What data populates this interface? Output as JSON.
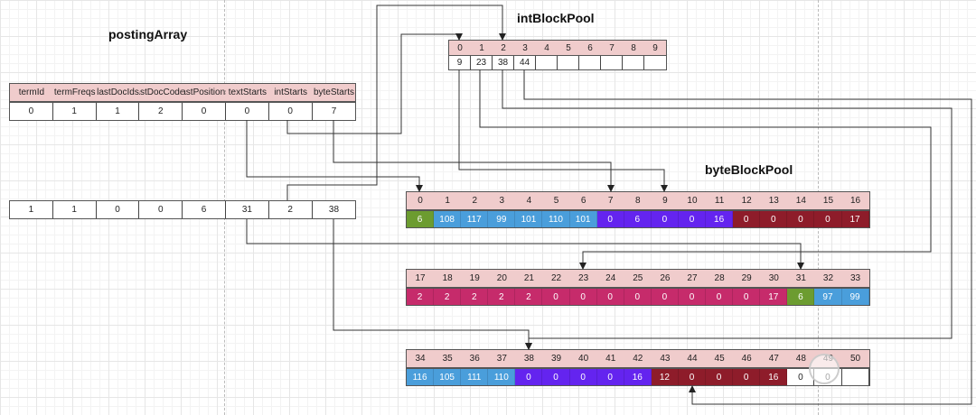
{
  "titles": {
    "posting_array": "postingArray",
    "int_block_pool": "intBlockPool",
    "byte_block_pool": "byteBlockPool"
  },
  "posting_array": {
    "headers": [
      "termId",
      "termFreqs",
      "lastDocIds",
      "lastDocCodes",
      "lastPositions",
      "textStarts",
      "intStarts",
      "byteStarts"
    ],
    "row1": [
      "0",
      "1",
      "1",
      "2",
      "0",
      "0",
      "0",
      "7"
    ],
    "row2": [
      "1",
      "1",
      "0",
      "0",
      "6",
      "31",
      "2",
      "38"
    ]
  },
  "int_block_pool": {
    "indices": [
      "0",
      "1",
      "2",
      "3",
      "4",
      "5",
      "6",
      "7",
      "8",
      "9"
    ],
    "values": [
      "9",
      "23",
      "38",
      "44",
      "",
      "",
      "",
      "",
      "",
      ""
    ]
  },
  "byte_block_pool": {
    "rows": [
      {
        "indices": [
          "0",
          "1",
          "2",
          "3",
          "4",
          "5",
          "6",
          "7",
          "8",
          "9",
          "10",
          "11",
          "12",
          "13",
          "14",
          "15",
          "16"
        ],
        "values": [
          "6",
          "108",
          "117",
          "99",
          "101",
          "110",
          "101",
          "0",
          "6",
          "0",
          "0",
          "16",
          "0",
          "0",
          "0",
          "0",
          "17"
        ],
        "colors": [
          "green",
          "blue",
          "blue",
          "blue",
          "blue",
          "blue",
          "blue",
          "purple",
          "purple",
          "purple",
          "purple",
          "purple",
          "darkred",
          "darkred",
          "darkred",
          "darkred",
          "darkred"
        ]
      },
      {
        "indices": [
          "17",
          "18",
          "19",
          "20",
          "21",
          "22",
          "23",
          "24",
          "25",
          "26",
          "27",
          "28",
          "29",
          "30",
          "31",
          "32",
          "33"
        ],
        "values": [
          "2",
          "2",
          "2",
          "2",
          "2",
          "0",
          "0",
          "0",
          "0",
          "0",
          "0",
          "0",
          "0",
          "17",
          "6",
          "97",
          "99"
        ],
        "colors": [
          "magenta",
          "magenta",
          "magenta",
          "magenta",
          "magenta",
          "magenta",
          "magenta",
          "magenta",
          "magenta",
          "magenta",
          "magenta",
          "magenta",
          "magenta",
          "magenta",
          "green",
          "blue",
          "blue"
        ]
      },
      {
        "indices": [
          "34",
          "35",
          "36",
          "37",
          "38",
          "39",
          "40",
          "41",
          "42",
          "43",
          "44",
          "45",
          "46",
          "47",
          "48",
          "49",
          "50"
        ],
        "values": [
          "116",
          "105",
          "111",
          "110",
          "0",
          "0",
          "0",
          "0",
          "16",
          "12",
          "0",
          "0",
          "0",
          "16",
          "0",
          "0",
          ""
        ],
        "colors": [
          "blue",
          "blue",
          "blue",
          "blue",
          "purple",
          "purple",
          "purple",
          "purple",
          "purple",
          "darkred",
          "darkred",
          "darkred",
          "darkred",
          "darkred",
          "white",
          "white",
          "white"
        ]
      }
    ]
  },
  "palette": {
    "green": "#6c9c30",
    "blue": "#4a9edb",
    "purple": "#6424ef",
    "darkred": "#8e1c2a",
    "magenta": "#c62b6b",
    "white": "#ffffff",
    "header": "#f0cccc"
  },
  "watermark": "法拉第第"
}
